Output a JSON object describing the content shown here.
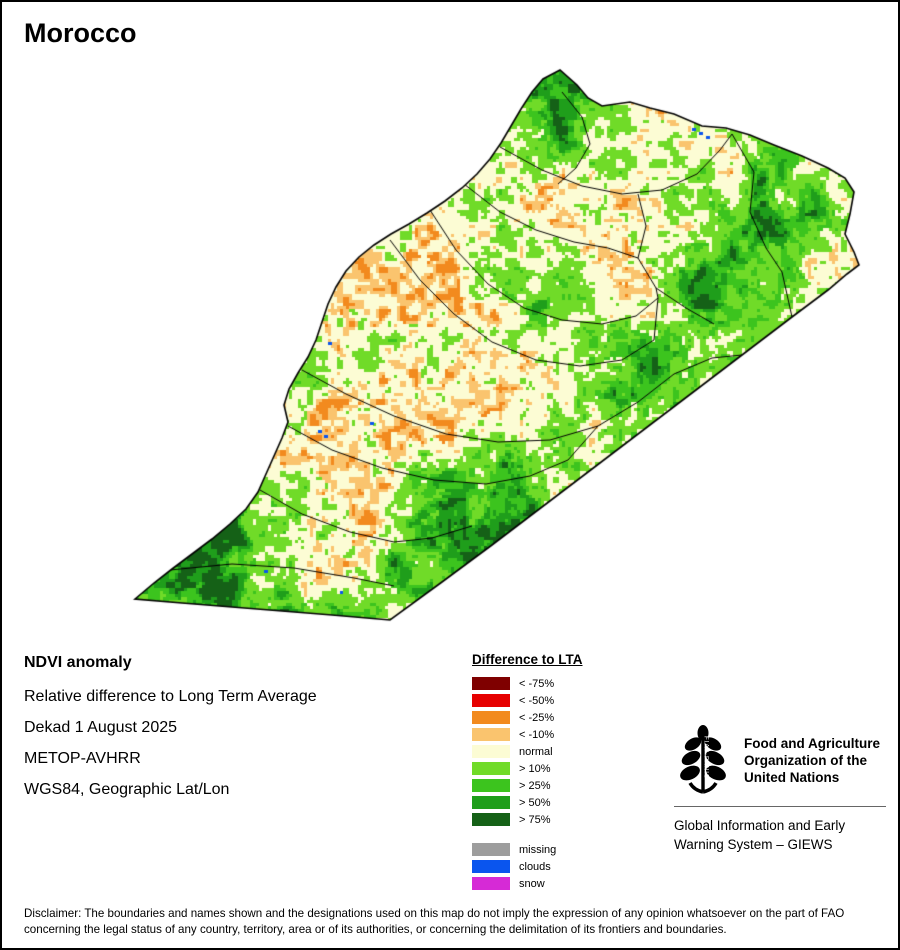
{
  "title": "Morocco",
  "info": {
    "heading": "NDVI anomaly",
    "lines": [
      "Relative difference to Long Term Average",
      "Dekad 1 August 2025",
      "METOP-AVHRR",
      "WGS84, Geographic Lat/Lon"
    ]
  },
  "legend": {
    "title": "Difference to LTA",
    "items": [
      {
        "label": "< -75%",
        "color": "#7f0000"
      },
      {
        "label": "< -50%",
        "color": "#e60000"
      },
      {
        "label": "< -25%",
        "color": "#f28a1e"
      },
      {
        "label": "< -10%",
        "color": "#fac46e"
      },
      {
        "label": "normal",
        "color": "#fcfcd4"
      },
      {
        "label": "> 10%",
        "color": "#70db28"
      },
      {
        "label": "> 25%",
        "color": "#3cc41e"
      },
      {
        "label": "> 50%",
        "color": "#1f9e1b"
      },
      {
        "label": "> 75%",
        "color": "#156117"
      }
    ],
    "extra_items": [
      {
        "label": "missing",
        "color": "#9d9d9d"
      },
      {
        "label": "clouds",
        "color": "#0a55ee"
      },
      {
        "label": "snow",
        "color": "#d62ad6"
      }
    ]
  },
  "fao": {
    "org_name": "Food and Agriculture\nOrganization of the\nUnited Nations",
    "giews": "Global Information and Early\nWarning System – GIEWS",
    "logo_motto": "FIAT·PANIS"
  },
  "map": {
    "outline_color": "#000000",
    "background": "#ffffff"
  },
  "disclaimer": "Disclaimer: The boundaries and names shown and the designations used on this map do not imply the expression of any opinion whatsoever on the part of FAO concerning the legal status of any country, territory, area or of its authorities, or concerning the delimitation of its frontiers and boundaries."
}
